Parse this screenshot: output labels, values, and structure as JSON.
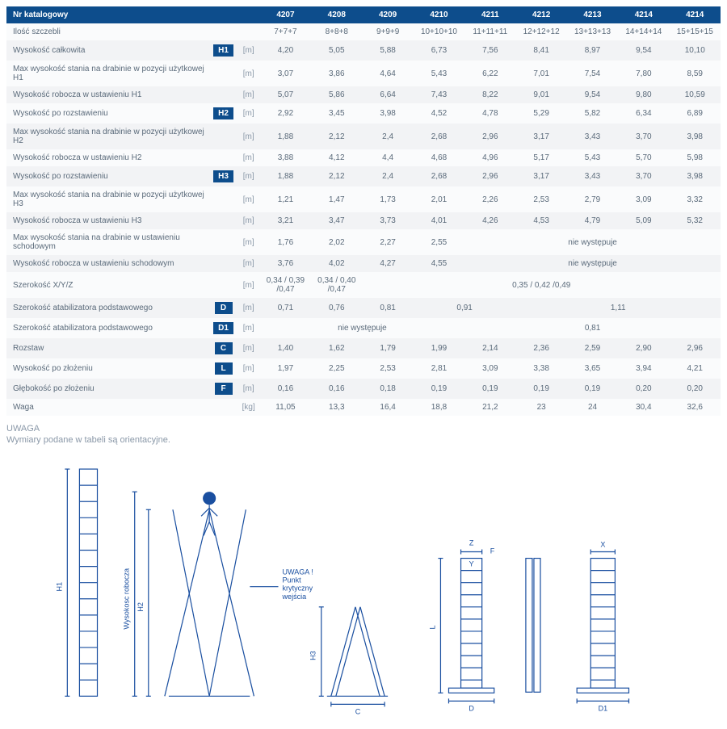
{
  "header": {
    "label": "Nr katalogowy",
    "cols": [
      "4207",
      "4208",
      "4209",
      "4210",
      "4211",
      "4212",
      "4213",
      "4214",
      "4214"
    ]
  },
  "rows": [
    {
      "label": "Ilość szczebli",
      "dim": "",
      "unit": "",
      "cells": [
        {
          "v": "7+7+7"
        },
        {
          "v": "8+8+8"
        },
        {
          "v": "9+9+9"
        },
        {
          "v": "10+10+10"
        },
        {
          "v": "11+11+11"
        },
        {
          "v": "12+12+12"
        },
        {
          "v": "13+13+13"
        },
        {
          "v": "14+14+14"
        },
        {
          "v": "15+15+15"
        }
      ]
    },
    {
      "label": "Wysokość całkowita",
      "dim": "H1",
      "unit": "[m]",
      "cells": [
        {
          "v": "4,20"
        },
        {
          "v": "5,05"
        },
        {
          "v": "5,88"
        },
        {
          "v": "6,73"
        },
        {
          "v": "7,56"
        },
        {
          "v": "8,41"
        },
        {
          "v": "8,97"
        },
        {
          "v": "9,54"
        },
        {
          "v": "10,10"
        }
      ]
    },
    {
      "label": "Max wysokość stania na drabinie w pozycji użytkowej H1",
      "dim": "",
      "unit": "[m]",
      "cells": [
        {
          "v": "3,07"
        },
        {
          "v": "3,86"
        },
        {
          "v": "4,64"
        },
        {
          "v": "5,43"
        },
        {
          "v": "6,22"
        },
        {
          "v": "7,01"
        },
        {
          "v": "7,54"
        },
        {
          "v": "7,80"
        },
        {
          "v": "8,59"
        }
      ]
    },
    {
      "label": "Wysokość robocza w ustawieniu H1",
      "dim": "",
      "unit": "[m]",
      "cells": [
        {
          "v": "5,07"
        },
        {
          "v": "5,86"
        },
        {
          "v": "6,64"
        },
        {
          "v": "7,43"
        },
        {
          "v": "8,22"
        },
        {
          "v": "9,01"
        },
        {
          "v": "9,54"
        },
        {
          "v": "9,80"
        },
        {
          "v": "10,59"
        }
      ]
    },
    {
      "label": "Wysokość po rozstawieniu",
      "dim": "H2",
      "unit": "[m]",
      "cells": [
        {
          "v": "2,92"
        },
        {
          "v": "3,45"
        },
        {
          "v": "3,98"
        },
        {
          "v": "4,52"
        },
        {
          "v": "4,78"
        },
        {
          "v": "5,29"
        },
        {
          "v": "5,82"
        },
        {
          "v": "6,34"
        },
        {
          "v": "6,89"
        }
      ]
    },
    {
      "label": "Max wysokość stania na drabinie w pozycji użytkowej H2",
      "dim": "",
      "unit": "[m]",
      "cells": [
        {
          "v": "1,88"
        },
        {
          "v": "2,12"
        },
        {
          "v": "2,4"
        },
        {
          "v": "2,68"
        },
        {
          "v": "2,96"
        },
        {
          "v": "3,17"
        },
        {
          "v": "3,43"
        },
        {
          "v": "3,70"
        },
        {
          "v": "3,98"
        }
      ]
    },
    {
      "label": "Wysokość robocza w ustawieniu H2",
      "dim": "",
      "unit": "[m]",
      "cells": [
        {
          "v": "3,88"
        },
        {
          "v": "4,12"
        },
        {
          "v": "4,4"
        },
        {
          "v": "4,68"
        },
        {
          "v": "4,96"
        },
        {
          "v": "5,17"
        },
        {
          "v": "5,43"
        },
        {
          "v": "5,70"
        },
        {
          "v": "5,98"
        }
      ]
    },
    {
      "label": "Wysokość po rozstawieniu",
      "dim": "H3",
      "unit": "[m]",
      "cells": [
        {
          "v": "1,88"
        },
        {
          "v": "2,12"
        },
        {
          "v": "2,4"
        },
        {
          "v": "2,68"
        },
        {
          "v": "2,96"
        },
        {
          "v": "3,17"
        },
        {
          "v": "3,43"
        },
        {
          "v": "3,70"
        },
        {
          "v": "3,98"
        }
      ]
    },
    {
      "label": "Max wysokość stania na drabinie w pozycji użytkowej H3",
      "dim": "",
      "unit": "[m]",
      "cells": [
        {
          "v": "1,21"
        },
        {
          "v": "1,47"
        },
        {
          "v": "1,73"
        },
        {
          "v": "2,01"
        },
        {
          "v": "2,26"
        },
        {
          "v": "2,53"
        },
        {
          "v": "2,79"
        },
        {
          "v": "3,09"
        },
        {
          "v": "3,32"
        }
      ]
    },
    {
      "label": "Wysokość robocza w ustawieniu H3",
      "dim": "",
      "unit": "[m]",
      "cells": [
        {
          "v": "3,21"
        },
        {
          "v": "3,47"
        },
        {
          "v": "3,73"
        },
        {
          "v": "4,01"
        },
        {
          "v": "4,26"
        },
        {
          "v": "4,53"
        },
        {
          "v": "4,79"
        },
        {
          "v": "5,09"
        },
        {
          "v": "5,32"
        }
      ]
    },
    {
      "label": "Max wysokość stania na drabinie w ustawieniu schodowym",
      "dim": "",
      "unit": "[m]",
      "cells": [
        {
          "v": "1,76"
        },
        {
          "v": "2,02"
        },
        {
          "v": "2,27"
        },
        {
          "v": "2,55"
        },
        {
          "v": "nie występuje",
          "span": 5
        }
      ]
    },
    {
      "label": "Wysokość robocza w ustawieniu schodowym",
      "dim": "",
      "unit": "[m]",
      "cells": [
        {
          "v": "3,76"
        },
        {
          "v": "4,02"
        },
        {
          "v": "4,27"
        },
        {
          "v": "4,55"
        },
        {
          "v": "nie występuje",
          "span": 5
        }
      ]
    },
    {
      "label": "Szerokość X/Y/Z",
      "dim": "",
      "unit": "[m]",
      "cells": [
        {
          "v": "0,34 / 0,39 /0,47"
        },
        {
          "v": "0,34 / 0,40 /0,47"
        },
        {
          "v": "0,35 / 0,42 /0,49",
          "span": 7
        }
      ]
    },
    {
      "label": "Szerokość atabilizatora podstawowego",
      "dim": "D",
      "unit": "[m]",
      "cells": [
        {
          "v": "0,71"
        },
        {
          "v": "0,76"
        },
        {
          "v": "0,81"
        },
        {
          "v": "0,91",
          "span": 2
        },
        {
          "v": "1,11",
          "span": 4
        }
      ]
    },
    {
      "label": "Szerokość atabilizatora podstawowego",
      "dim": "D1",
      "unit": "[m]",
      "cells": [
        {
          "v": "nie występuje",
          "span": 4
        },
        {
          "v": "0,81",
          "span": 5
        }
      ]
    },
    {
      "label": "Rozstaw",
      "dim": "C",
      "unit": "[m]",
      "cells": [
        {
          "v": "1,40"
        },
        {
          "v": "1,62"
        },
        {
          "v": "1,79"
        },
        {
          "v": "1,99"
        },
        {
          "v": "2,14"
        },
        {
          "v": "2,36"
        },
        {
          "v": "2,59"
        },
        {
          "v": "2,90"
        },
        {
          "v": "2,96"
        }
      ]
    },
    {
      "label": "Wysokość po złożeniu",
      "dim": "L",
      "unit": "[m]",
      "cells": [
        {
          "v": "1,97"
        },
        {
          "v": "2,25"
        },
        {
          "v": "2,53"
        },
        {
          "v": "2,81"
        },
        {
          "v": "3,09"
        },
        {
          "v": "3,38"
        },
        {
          "v": "3,65"
        },
        {
          "v": "3,94"
        },
        {
          "v": "4,21"
        }
      ]
    },
    {
      "label": "Głębokość po złożeniu",
      "dim": "F",
      "unit": "[m]",
      "cells": [
        {
          "v": "0,16"
        },
        {
          "v": "0,16"
        },
        {
          "v": "0,18"
        },
        {
          "v": "0,19"
        },
        {
          "v": "0,19"
        },
        {
          "v": "0,19"
        },
        {
          "v": "0,19"
        },
        {
          "v": "0,20"
        },
        {
          "v": "0,20"
        }
      ]
    },
    {
      "label": "Waga",
      "dim": "",
      "unit": "[kg]",
      "cells": [
        {
          "v": "11,05"
        },
        {
          "v": "13,3"
        },
        {
          "v": "16,4"
        },
        {
          "v": "18,8"
        },
        {
          "v": "21,2"
        },
        {
          "v": "23"
        },
        {
          "v": "24"
        },
        {
          "v": "30,4"
        },
        {
          "v": "32,6"
        }
      ]
    }
  ],
  "note": {
    "title": "UWAGA",
    "text": "Wymiary podane w tabeli są orientacyjne."
  },
  "colors": {
    "brand": "#0d4d8c",
    "stroke": "#1a4fa0"
  },
  "diagram": {
    "labels": {
      "h1": "H1",
      "h2": "H2",
      "h3": "H3",
      "wys": "Wysokosc robocza",
      "c": "C",
      "d": "D",
      "d1": "D1",
      "l": "L",
      "f": "F",
      "x": "X",
      "y": "Y",
      "z": "Z",
      "warn1": "UWAGA !",
      "warn2": "Punkt",
      "warn3": "krytyczny",
      "warn4": "wejścia"
    }
  }
}
